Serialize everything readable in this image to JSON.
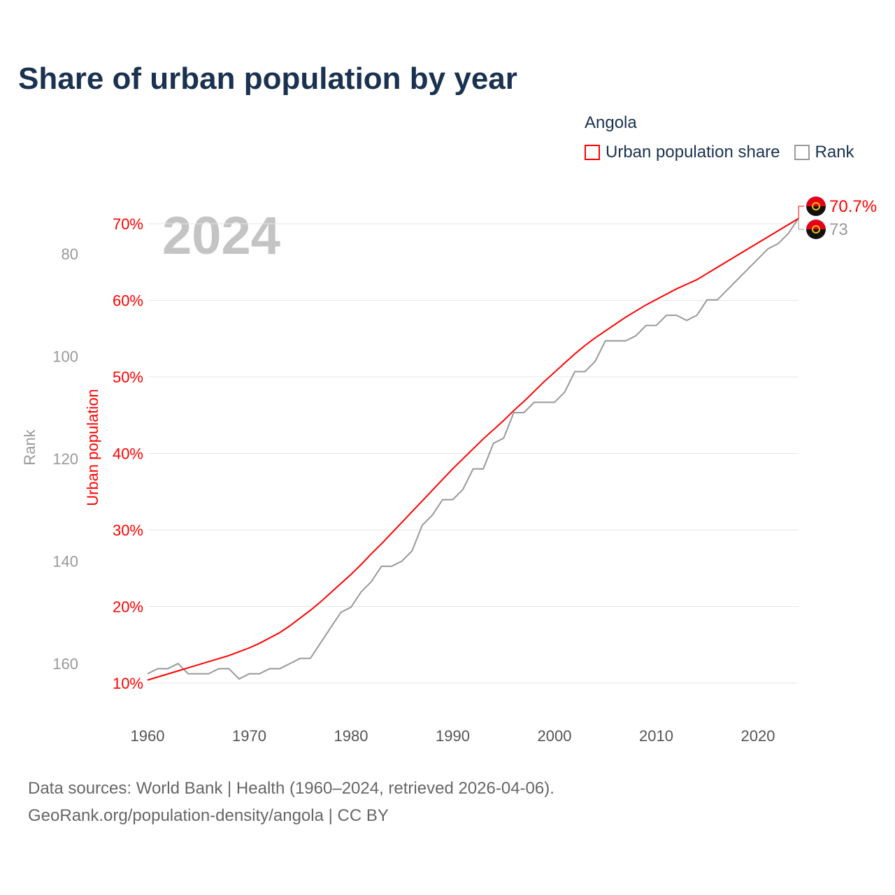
{
  "title": "Share of urban population by year",
  "legend": {
    "title": "Angola",
    "items": [
      {
        "label": "Urban population share",
        "color": "#ff0000"
      },
      {
        "label": "Rank",
        "color": "#999999"
      }
    ]
  },
  "footer": {
    "line1": "Data sources: World Bank | Health (1960–2024, retrieved 2026-04-06).",
    "line2": "GeoRank.org/population-density/angola | CC BY"
  },
  "chart_data": {
    "type": "line",
    "title": "Share of urban population by year",
    "watermark_year": "2024",
    "x": [
      1960,
      1961,
      1962,
      1963,
      1964,
      1965,
      1966,
      1967,
      1968,
      1969,
      1970,
      1971,
      1972,
      1973,
      1974,
      1975,
      1976,
      1977,
      1978,
      1979,
      1980,
      1981,
      1982,
      1983,
      1984,
      1985,
      1986,
      1987,
      1988,
      1989,
      1990,
      1991,
      1992,
      1993,
      1994,
      1995,
      1996,
      1997,
      1998,
      1999,
      2000,
      2001,
      2002,
      2003,
      2004,
      2005,
      2006,
      2007,
      2008,
      2009,
      2010,
      2011,
      2012,
      2013,
      2014,
      2015,
      2016,
      2017,
      2018,
      2019,
      2020,
      2021,
      2022,
      2023,
      2024
    ],
    "xlim": [
      1960,
      2024
    ],
    "xticks": [
      "1960",
      "1970",
      "1980",
      "1990",
      "2000",
      "2010",
      "2020"
    ],
    "series": [
      {
        "name": "Urban population share",
        "axis": "left",
        "color": "#ff0000",
        "unit": "%",
        "values": [
          10.4,
          10.8,
          11.2,
          11.6,
          12.0,
          12.4,
          12.8,
          13.2,
          13.6,
          14.1,
          14.6,
          15.2,
          15.9,
          16.6,
          17.5,
          18.5,
          19.5,
          20.6,
          21.8,
          23.0,
          24.2,
          25.5,
          26.9,
          28.2,
          29.6,
          31.0,
          32.4,
          33.8,
          35.2,
          36.6,
          38.0,
          39.3,
          40.6,
          41.9,
          43.1,
          44.3,
          45.6,
          46.8,
          48.1,
          49.4,
          50.6,
          51.8,
          53.0,
          54.1,
          55.1,
          56.0,
          56.9,
          57.8,
          58.6,
          59.4,
          60.1,
          60.8,
          61.5,
          62.1,
          62.7,
          63.5,
          64.3,
          65.1,
          65.9,
          66.7,
          67.5,
          68.3,
          69.1,
          69.9,
          70.7
        ],
        "end_label": "70.7%"
      },
      {
        "name": "Rank",
        "axis": "far-left",
        "color": "#999999",
        "values": [
          162,
          161,
          161,
          160,
          162,
          162,
          162,
          161,
          161,
          163,
          162,
          162,
          161,
          161,
          160,
          159,
          159,
          156,
          153,
          150,
          149,
          146,
          144,
          141,
          141,
          140,
          138,
          133,
          131,
          128,
          128,
          126,
          122,
          122,
          117,
          116,
          111,
          111,
          109,
          109,
          109,
          107,
          103,
          103,
          101,
          97,
          97,
          97,
          96,
          94,
          94,
          92,
          92,
          93,
          92,
          89,
          89,
          87,
          85,
          83,
          81,
          79,
          78,
          76,
          73
        ],
        "end_label": "73"
      }
    ],
    "left_axis": {
      "label": "Urban population",
      "ticks": [
        "10%",
        "20%",
        "30%",
        "40%",
        "50%",
        "60%",
        "70%"
      ],
      "tick_values": [
        10,
        20,
        30,
        40,
        50,
        60,
        70
      ],
      "ylim": [
        10,
        70
      ]
    },
    "rank_axis": {
      "label": "Rank",
      "ticks": [
        "80",
        "100",
        "120",
        "140",
        "160"
      ],
      "tick_values": [
        80,
        100,
        120,
        140,
        160
      ],
      "inverted": true
    },
    "grid": true,
    "legend_position": "top-right"
  }
}
